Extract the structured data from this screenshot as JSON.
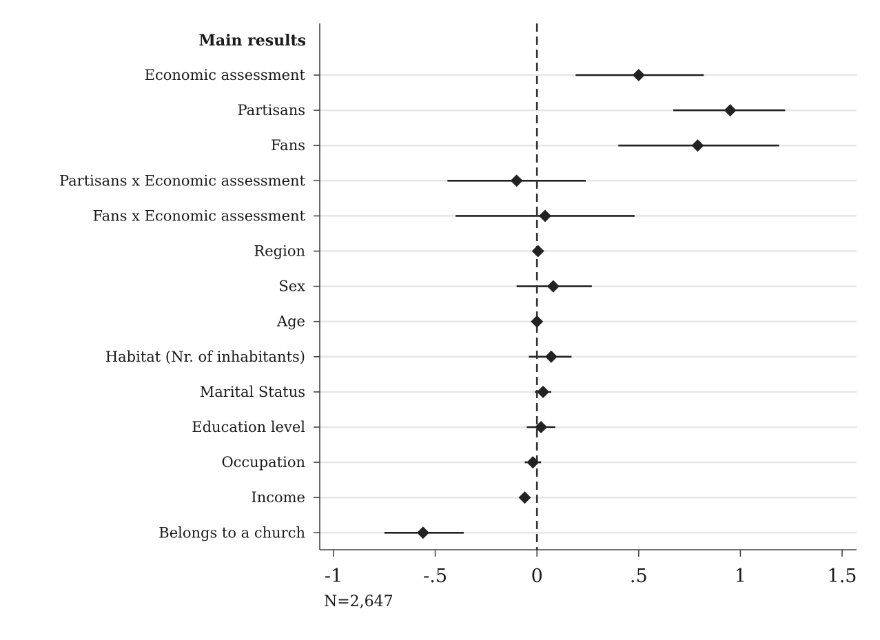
{
  "chart_data": {
    "type": "scatter",
    "orientation": "horizontal",
    "group_label": "Main results",
    "xlim": [
      -1,
      1.5
    ],
    "xticks": [
      -1,
      -0.5,
      0,
      0.5,
      1,
      1.5
    ],
    "xtick_labels": [
      "-1",
      "-.5",
      "0",
      ".5",
      "1",
      "1.5"
    ],
    "reference_line": 0,
    "note": "N=2,647",
    "grid": true,
    "series": [
      {
        "points": [
          {
            "label": "Economic assessment",
            "estimate": 0.5,
            "ci_low": 0.19,
            "ci_high": 0.82
          },
          {
            "label": "Partisans",
            "estimate": 0.95,
            "ci_low": 0.67,
            "ci_high": 1.22
          },
          {
            "label": "Fans",
            "estimate": 0.79,
            "ci_low": 0.4,
            "ci_high": 1.19
          },
          {
            "label": "Partisans x Economic assessment",
            "estimate": -0.1,
            "ci_low": -0.44,
            "ci_high": 0.24
          },
          {
            "label": "Fans x Economic assessment",
            "estimate": 0.04,
            "ci_low": -0.4,
            "ci_high": 0.48
          },
          {
            "label": "Region",
            "estimate": 0.005,
            "ci_low": -0.005,
            "ci_high": 0.015
          },
          {
            "label": "Sex",
            "estimate": 0.08,
            "ci_low": -0.1,
            "ci_high": 0.27
          },
          {
            "label": "Age",
            "estimate": 0.0,
            "ci_low": -0.005,
            "ci_high": 0.005
          },
          {
            "label": "Habitat (Nr. of inhabitants)",
            "estimate": 0.07,
            "ci_low": -0.04,
            "ci_high": 0.17
          },
          {
            "label": "Marital Status",
            "estimate": 0.03,
            "ci_low": -0.01,
            "ci_high": 0.07
          },
          {
            "label": "Education level",
            "estimate": 0.02,
            "ci_low": -0.05,
            "ci_high": 0.09
          },
          {
            "label": "Occupation",
            "estimate": -0.02,
            "ci_low": -0.06,
            "ci_high": 0.02
          },
          {
            "label": "Income",
            "estimate": -0.06,
            "ci_low": -0.08,
            "ci_high": -0.04
          },
          {
            "label": "Belongs to a church",
            "estimate": -0.56,
            "ci_low": -0.75,
            "ci_high": -0.36
          }
        ]
      }
    ]
  },
  "colors": {
    "marker": "#222222",
    "gridline": "#e6e6e6",
    "reference_line": "#333333",
    "axis": "#444444"
  }
}
